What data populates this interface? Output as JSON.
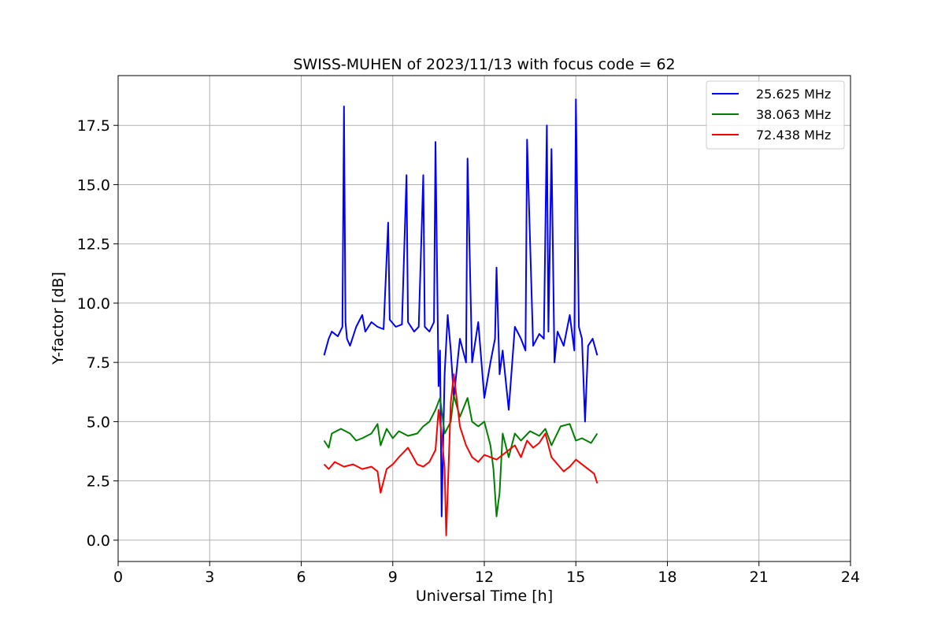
{
  "chart_data": {
    "type": "line",
    "title": "SWISS-MUHEN of 2023/11/13 with focus code = 62",
    "xlabel": "Universal Time [h]",
    "ylabel": "Y-factor [dB]",
    "xlim": [
      0,
      24
    ],
    "ylim": [
      -0.9,
      19.6
    ],
    "xticks": [
      0,
      3,
      6,
      9,
      12,
      15,
      18,
      21,
      24
    ],
    "xtick_labels": [
      "0",
      "3",
      "6",
      "9",
      "12",
      "15",
      "18",
      "21",
      "24"
    ],
    "yticks": [
      0,
      2.5,
      5,
      7.5,
      10,
      12.5,
      15,
      17.5
    ],
    "ytick_labels": [
      "0.0",
      "2.5",
      "5.0",
      "7.5",
      "10.0",
      "12.5",
      "15.0",
      "17.5"
    ],
    "grid": true,
    "legend_position": "top-right",
    "series": [
      {
        "name": "25.625 MHz",
        "color": "#0000ff",
        "x": [
          6.75,
          6.9,
          7.0,
          7.2,
          7.35,
          7.4,
          7.45,
          7.5,
          7.6,
          7.8,
          8.0,
          8.1,
          8.3,
          8.5,
          8.7,
          8.85,
          8.9,
          9.1,
          9.3,
          9.45,
          9.5,
          9.7,
          9.85,
          10.0,
          10.05,
          10.2,
          10.35,
          10.4,
          10.5,
          10.55,
          10.6,
          10.7,
          10.8,
          10.9,
          11.0,
          11.2,
          11.4,
          11.45,
          11.6,
          11.8,
          12.0,
          12.2,
          12.35,
          12.4,
          12.5,
          12.6,
          12.8,
          13.0,
          13.2,
          13.35,
          13.4,
          13.6,
          13.8,
          13.95,
          14.05,
          14.1,
          14.2,
          14.3,
          14.4,
          14.6,
          14.8,
          14.95,
          15.0,
          15.1,
          15.2,
          15.3,
          15.4,
          15.55,
          15.7
        ],
        "y": [
          7.8,
          8.5,
          8.8,
          8.6,
          9.0,
          18.3,
          9.2,
          8.5,
          8.2,
          9.0,
          9.5,
          8.8,
          9.2,
          9.0,
          8.9,
          13.4,
          9.3,
          9.0,
          9.1,
          15.4,
          9.2,
          8.8,
          9.0,
          15.4,
          9.0,
          8.8,
          9.2,
          16.8,
          6.5,
          8.0,
          1.0,
          7.0,
          9.5,
          8.0,
          6.0,
          8.5,
          7.5,
          16.1,
          7.5,
          9.2,
          6.0,
          7.5,
          8.5,
          11.5,
          7.0,
          8.0,
          5.5,
          9.0,
          8.5,
          8.0,
          16.9,
          8.2,
          8.7,
          8.5,
          17.5,
          8.8,
          16.5,
          7.5,
          8.8,
          8.2,
          9.5,
          8.0,
          18.6,
          9.0,
          8.5,
          5.0,
          8.2,
          8.5,
          7.8
        ]
      },
      {
        "name": "38.063 MHz",
        "color": "#008000",
        "x": [
          6.75,
          6.9,
          7.0,
          7.3,
          7.6,
          7.8,
          8.0,
          8.3,
          8.5,
          8.6,
          8.8,
          9.0,
          9.2,
          9.5,
          9.8,
          10.0,
          10.2,
          10.4,
          10.55,
          10.7,
          10.9,
          11.0,
          11.2,
          11.45,
          11.6,
          11.8,
          12.0,
          12.2,
          12.3,
          12.4,
          12.5,
          12.6,
          12.8,
          13.0,
          13.2,
          13.5,
          13.8,
          14.0,
          14.2,
          14.5,
          14.8,
          15.0,
          15.2,
          15.5,
          15.7
        ],
        "y": [
          4.2,
          3.9,
          4.5,
          4.7,
          4.5,
          4.2,
          4.3,
          4.5,
          4.9,
          4.0,
          4.7,
          4.3,
          4.6,
          4.4,
          4.5,
          4.8,
          5.0,
          5.5,
          6.0,
          4.5,
          5.0,
          6.1,
          5.2,
          6.0,
          5.0,
          4.8,
          5.0,
          4.0,
          3.0,
          1.0,
          2.0,
          4.5,
          3.5,
          4.5,
          4.2,
          4.6,
          4.4,
          4.7,
          4.0,
          4.8,
          4.9,
          4.2,
          4.3,
          4.1,
          4.5
        ]
      },
      {
        "name": "72.438 MHz",
        "color": "#ff0000",
        "x": [
          6.75,
          6.9,
          7.1,
          7.4,
          7.7,
          8.0,
          8.3,
          8.5,
          8.6,
          8.8,
          9.0,
          9.2,
          9.5,
          9.8,
          10.0,
          10.2,
          10.4,
          10.5,
          10.6,
          10.7,
          10.75,
          10.9,
          11.0,
          11.2,
          11.4,
          11.6,
          11.8,
          12.0,
          12.2,
          12.4,
          12.6,
          12.8,
          13.0,
          13.2,
          13.4,
          13.6,
          13.8,
          14.0,
          14.2,
          14.4,
          14.6,
          14.8,
          15.0,
          15.2,
          15.4,
          15.6,
          15.7
        ],
        "y": [
          3.2,
          3.0,
          3.3,
          3.1,
          3.2,
          3.0,
          3.1,
          2.9,
          2.0,
          3.0,
          3.2,
          3.5,
          3.9,
          3.2,
          3.1,
          3.3,
          3.8,
          5.5,
          4.5,
          3.0,
          0.2,
          5.8,
          7.0,
          4.8,
          4.0,
          3.5,
          3.3,
          3.6,
          3.5,
          3.4,
          3.6,
          3.8,
          4.0,
          3.5,
          4.2,
          3.9,
          4.1,
          4.5,
          3.5,
          3.2,
          2.9,
          3.1,
          3.4,
          3.2,
          3.0,
          2.8,
          2.4
        ]
      }
    ]
  }
}
